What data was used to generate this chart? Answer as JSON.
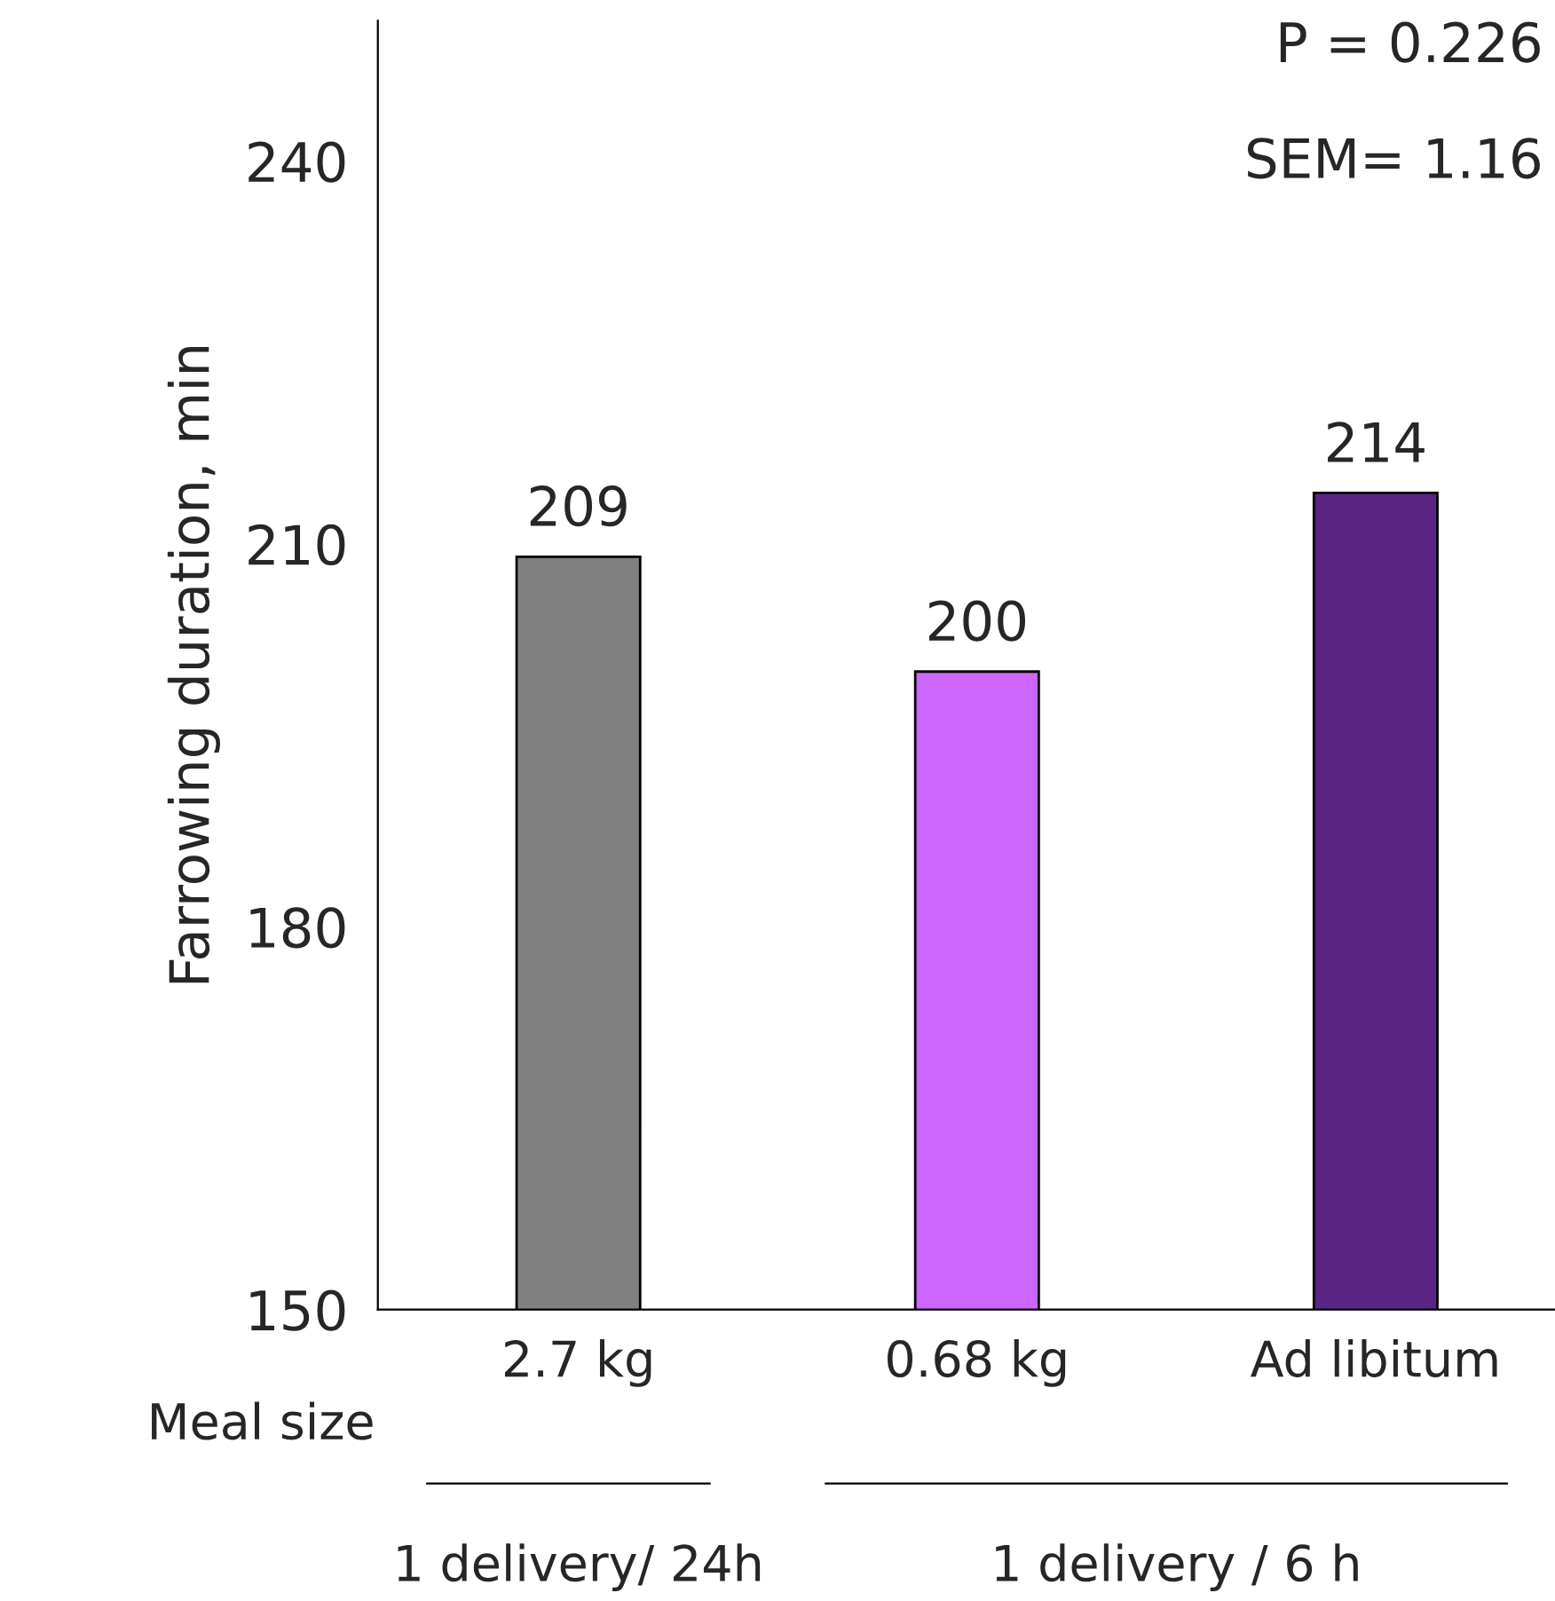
{
  "chart_data": {
    "type": "bar",
    "ylabel": "Farrowing duration, min",
    "categories": [
      "2.7 kg",
      "0.68 kg",
      "Ad libitum"
    ],
    "values": [
      209,
      200,
      214
    ],
    "colors": [
      "#808080",
      "#cc66ff",
      "#5b2683"
    ],
    "ylim": [
      150,
      251
    ],
    "yticks": [
      150,
      180,
      210,
      240
    ],
    "data_labels": true,
    "grid": false,
    "legend": false,
    "annotations": [
      "P = 0.226",
      "SEM= 1.16",
      "Meal size",
      "1 delivery/ 24h",
      "1 delivery / 6 h"
    ]
  }
}
